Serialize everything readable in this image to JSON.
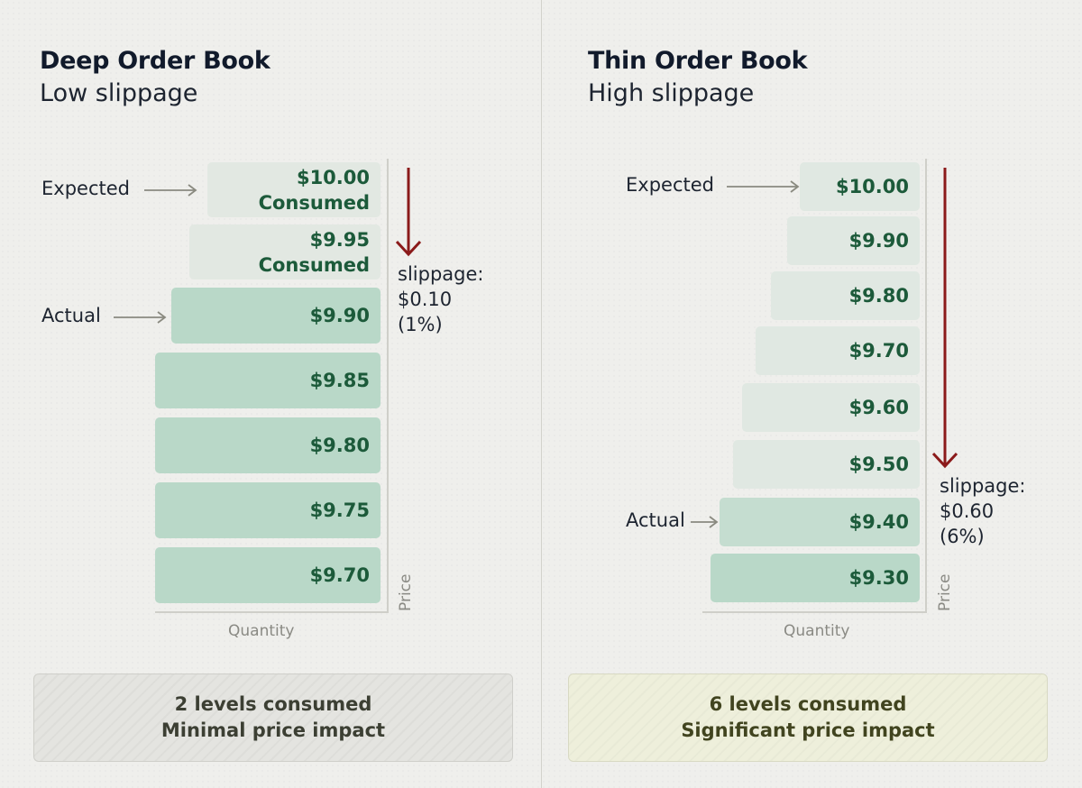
{
  "left_panel": {
    "title": "Deep Order Book",
    "subtitle": "Low slippage",
    "levels": [
      {
        "price": "$10.00",
        "status": "Consumed"
      },
      {
        "price": "$9.95",
        "status": "Consumed"
      },
      {
        "price": "$9.90"
      },
      {
        "price": "$9.85"
      },
      {
        "price": "$9.80"
      },
      {
        "price": "$9.75"
      },
      {
        "price": "$9.70"
      }
    ],
    "expected_label": "Expected",
    "actual_label": "Actual",
    "slippage": [
      "slippage:",
      "$0.10",
      "(1%)"
    ],
    "x_axis_label": "Quantity",
    "y_axis_label": "Price",
    "summary": [
      "2 levels consumed",
      "Minimal price impact"
    ]
  },
  "right_panel": {
    "title": "Thin Order Book",
    "subtitle": "High slippage",
    "levels": [
      {
        "price": "$10.00"
      },
      {
        "price": "$9.90"
      },
      {
        "price": "$9.80"
      },
      {
        "price": "$9.70"
      },
      {
        "price": "$9.60"
      },
      {
        "price": "$9.50"
      },
      {
        "price": "$9.40"
      },
      {
        "price": "$9.30"
      }
    ],
    "expected_label": "Expected",
    "actual_label": "Actual",
    "slippage": [
      "slippage:",
      "$0.60",
      "(6%)"
    ],
    "x_axis_label": "Quantity",
    "y_axis_label": "Price",
    "summary": [
      "6 levels consumed",
      "Significant price impact"
    ]
  },
  "colors": {
    "consumed_bar": "#e2e8e2",
    "available_bar": "#b9d8c8",
    "price_text": "#1c5a3a",
    "slippage_arrow": "#8b1a1a"
  }
}
